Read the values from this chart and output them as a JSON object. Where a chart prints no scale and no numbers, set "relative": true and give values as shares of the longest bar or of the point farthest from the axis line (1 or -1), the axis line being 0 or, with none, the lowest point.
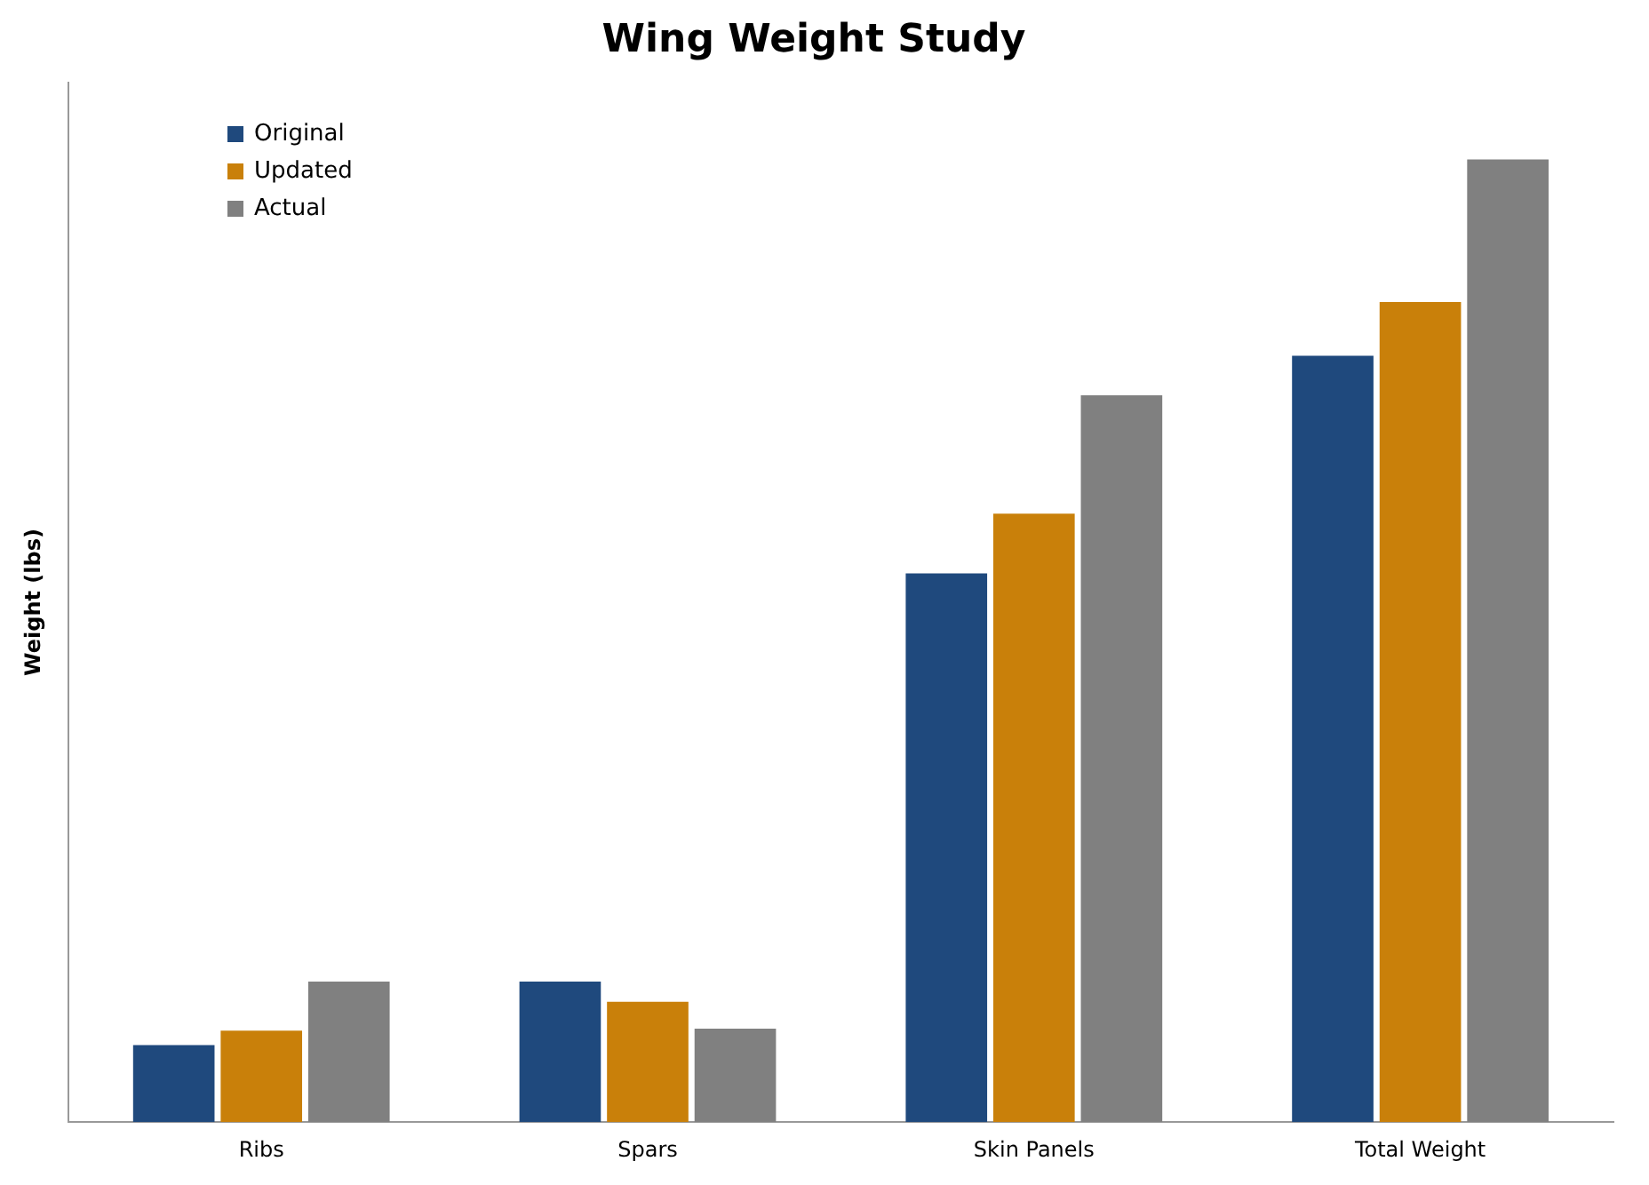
{
  "chart_data": {
    "type": "bar",
    "title": "Wing Weight Study",
    "ylabel": "Weight (lbs)",
    "relative": true,
    "categories": [
      "Ribs",
      "Spars",
      "Skin Panels",
      "Total Weight"
    ],
    "series": [
      {
        "name": "Original",
        "color": "#1f497d",
        "values": [
          0.08,
          0.146,
          0.57,
          0.796
        ]
      },
      {
        "name": "Updated",
        "color": "#c9800a",
        "values": [
          0.095,
          0.125,
          0.632,
          0.852
        ]
      },
      {
        "name": "Actual",
        "color": "#808080",
        "values": [
          0.146,
          0.097,
          0.755,
          1
        ]
      }
    ],
    "legend": "top left",
    "grid": false
  }
}
